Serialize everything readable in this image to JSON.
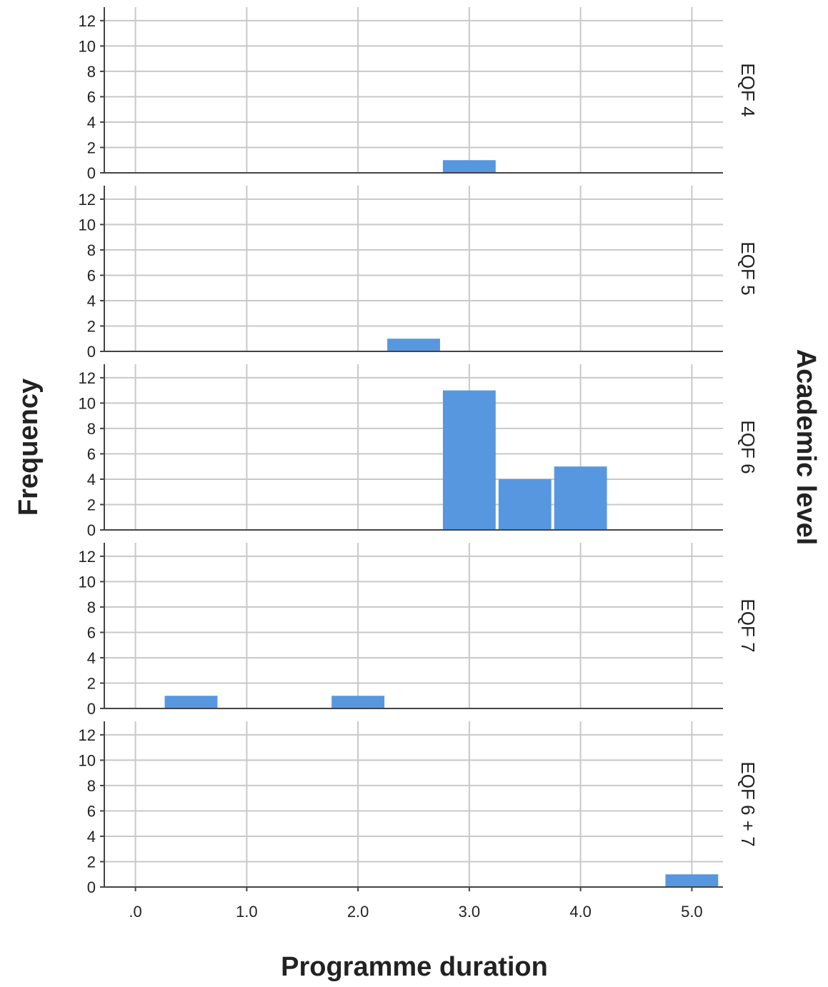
{
  "chart_data": {
    "type": "bar",
    "subtype": "paneled-histogram",
    "xlabel": "Programme duration",
    "ylabel": "Frequency",
    "panel_axis_label": "Academic level",
    "xlim": [
      -0.28,
      5.28
    ],
    "ylim": [
      0,
      12.5
    ],
    "x_ticks": [
      {
        "value": 0,
        "label": ".0"
      },
      {
        "value": 1,
        "label": "1.0"
      },
      {
        "value": 2,
        "label": "2.0"
      },
      {
        "value": 3,
        "label": "3.0"
      },
      {
        "value": 4,
        "label": "4.0"
      },
      {
        "value": 5,
        "label": "5.0"
      }
    ],
    "y_ticks": [
      0,
      2,
      4,
      6,
      8,
      10,
      12
    ],
    "bin_width": 0.5,
    "bar_color": "#5797e0",
    "grid": true,
    "panels": [
      {
        "label": "EQF 4",
        "bars": [
          {
            "x": 3.0,
            "count": 1
          }
        ]
      },
      {
        "label": "EQF 5",
        "bars": [
          {
            "x": 2.5,
            "count": 1
          }
        ]
      },
      {
        "label": "EQF 6",
        "bars": [
          {
            "x": 3.0,
            "count": 11
          },
          {
            "x": 3.5,
            "count": 4
          },
          {
            "x": 4.0,
            "count": 5
          }
        ]
      },
      {
        "label": "EQF 7",
        "bars": [
          {
            "x": 0.5,
            "count": 1
          },
          {
            "x": 2.0,
            "count": 1
          }
        ]
      },
      {
        "label": "EQF 6 + 7",
        "bars": [
          {
            "x": 5.0,
            "count": 1
          }
        ]
      }
    ]
  }
}
